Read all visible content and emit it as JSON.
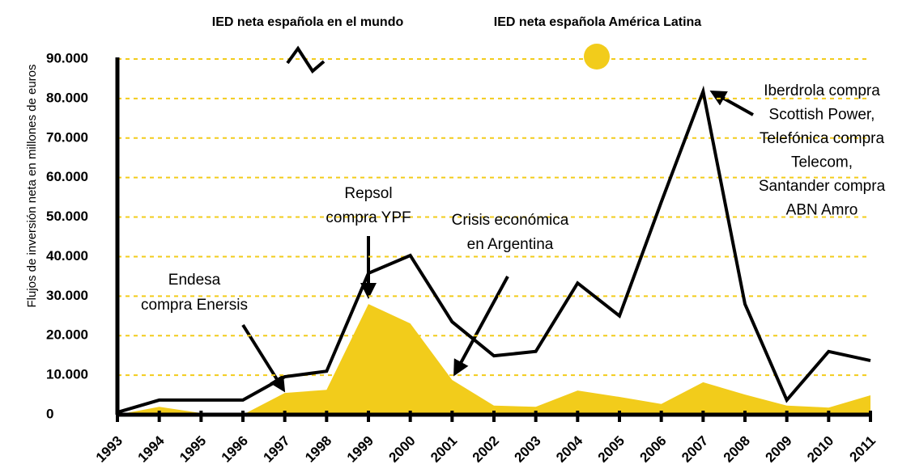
{
  "chart_data": {
    "type": "line-area",
    "y_label": "Flujos de inversión neta en millones de euros",
    "categories": [
      "1993",
      "1994",
      "1995",
      "1996",
      "1997",
      "1998",
      "1999",
      "2000",
      "2001",
      "2002",
      "2003",
      "2004",
      "2005",
      "2006",
      "2007",
      "2008",
      "2009",
      "2010",
      "2011"
    ],
    "series": [
      {
        "name": "IED neta española en el mundo",
        "color": "#000000",
        "style": "line",
        "values": [
          600,
          3700,
          3700,
          3700,
          9600,
          11000,
          35800,
          40300,
          23500,
          14900,
          16000,
          33300,
          25000,
          53800,
          81800,
          28000,
          3700,
          16000,
          13700
        ]
      },
      {
        "name": "IED neta española América Latina",
        "color": "#f2cc1b",
        "style": "area",
        "values": [
          0,
          2000,
          400,
          0,
          5500,
          6300,
          28000,
          23100,
          8800,
          2300,
          2000,
          6100,
          4500,
          2700,
          8200,
          5100,
          2300,
          1800,
          4900
        ]
      }
    ],
    "ylim": [
      0,
      90000
    ],
    "yticks": [
      0,
      {
        "value": 10000,
        "label": "10.000"
      },
      {
        "value": 20000,
        "label": "20.000"
      },
      {
        "value": 30000,
        "label": "30.000"
      },
      {
        "value": 40000,
        "label": "40.000"
      },
      {
        "value": 50000,
        "label": "50.000"
      },
      {
        "value": 60000,
        "label": "60.000"
      },
      {
        "value": 70000,
        "label": "70.000"
      },
      {
        "value": 80000,
        "label": "80.000"
      },
      {
        "value": 90000,
        "label": "90.000"
      }
    ],
    "grid": true,
    "annotations": [
      {
        "lines": [
          "Endesa",
          "compra Enersis"
        ]
      },
      {
        "lines": [
          "Repsol",
          "compra YPF"
        ]
      },
      {
        "lines": [
          "Crisis económica",
          "en Argentina"
        ]
      },
      {
        "lines": [
          "Iberdrola compra",
          "Scottish Power,",
          "Telefónica compra",
          "Telecom,",
          "Santander compra",
          "ABN Amro"
        ]
      }
    ]
  }
}
